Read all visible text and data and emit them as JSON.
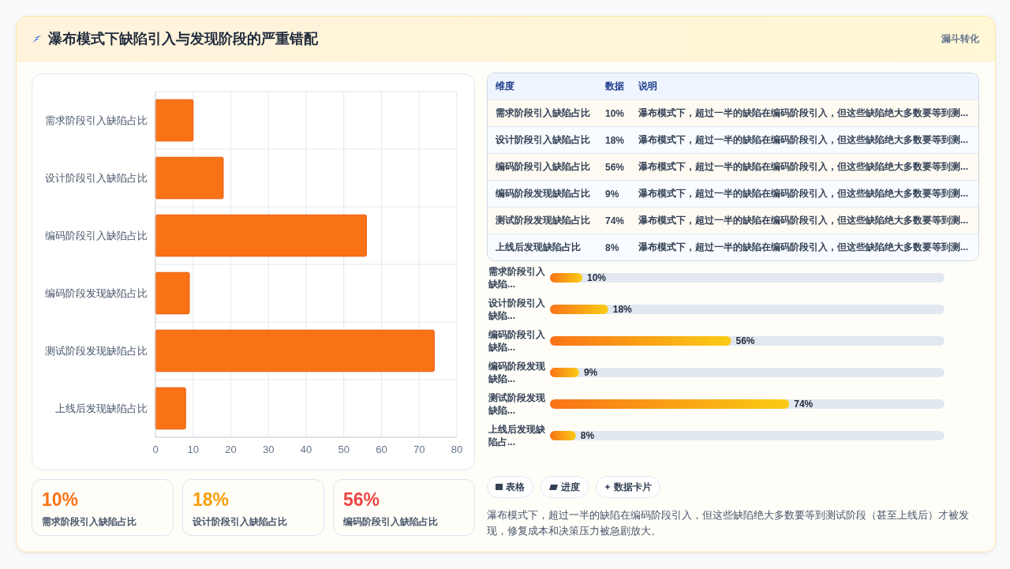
{
  "chart_data": [
    {
      "type": "other",
      "title": "瀑布模式下缺陷引入与发现阶段的严重错配",
      "subtitle": "漏斗转化"
    },
    {
      "type": "bar",
      "orientation": "horizontal",
      "categories": [
        "需求阶段引入缺陷占比",
        "设计阶段引入缺陷占比",
        "编码阶段引入缺陷占比",
        "编码阶段发现缺陷占比",
        "测试阶段发现缺陷占比",
        "上线后发现缺陷占比"
      ],
      "values": [
        10,
        18,
        56,
        9,
        74,
        8
      ],
      "color": "#f97316",
      "xlim": [
        0,
        80
      ],
      "xticks": [
        0,
        10,
        20,
        30,
        40,
        50,
        60,
        70,
        80
      ],
      "grid": true
    },
    {
      "type": "other",
      "categories": [
        "需求阶段引入缺陷占比",
        "设计阶段引入缺陷占比",
        "编码阶段引入缺陷占比",
        "编码阶段发现缺陷占比",
        "测试阶段发现缺陷占比",
        "上线后发现缺陷占比"
      ],
      "values": [
        10,
        18,
        56,
        9,
        74,
        8
      ],
      "value_labels": [
        "10%",
        "18%",
        "56%",
        "9%",
        "74%",
        "8%"
      ],
      "annotations": [
        "维度",
        "数据",
        "说明",
        "瀑布模式下，超过一半的缺陷在编码阶段引入，但这些缺陷绝大多数要等到测...",
        "瀑布模式下，超过一半的缺陷在编码阶段引入，但这些缺陷绝大多数要等到测...",
        "瀑布模式下，超过一半的缺陷在编码阶段引入，但这些缺陷绝大多数要等到测...",
        "瀑布模式下，超过一半的缺陷在编码阶段引入，但这些缺陷绝大多数要等到测...",
        "瀑布模式下，超过一半的缺陷在编码阶段引入，但这些缺陷绝大多数要等到测...",
        "瀑布模式下，超过一半的缺陷在编码阶段引入，但这些缺陷绝大多数要等到测..."
      ]
    },
    {
      "type": "bar",
      "orientation": "horizontal",
      "categories": [
        "需求阶段引入缺陷...",
        "设计阶段引入缺陷...",
        "编码阶段引入缺陷...",
        "编码阶段发现缺陷...",
        "测试阶段发现缺陷...",
        "上线后发现缺陷占..."
      ],
      "values": [
        10,
        18,
        56,
        9,
        74,
        8
      ],
      "value_labels": [
        "10%",
        "18%",
        "56%",
        "9%",
        "74%",
        "8%"
      ],
      "color": "#f97316",
      "xlim": [
        0,
        122
      ],
      "tick_labels": false
    },
    {
      "type": "other",
      "categories": [
        "需求阶段引入缺陷占比",
        "设计阶段引入缺陷占比",
        "编码阶段引入缺陷占比"
      ],
      "values": [
        10,
        18,
        56
      ],
      "value_labels": [
        "10%",
        "18%",
        "56%"
      ],
      "colors": [
        "#f97316",
        "#f59e0b",
        "#ef4444"
      ]
    },
    {
      "type": "other",
      "annotations": [
        "表格",
        "进度",
        "数据卡片",
        "瀑布模式下，超过一半的缺陷在编码阶段引入，但这些缺陷绝大多数要等到测试阶段（甚至上线后）才被发现，修复成本和决策压力被急剧放大。"
      ]
    }
  ]
}
